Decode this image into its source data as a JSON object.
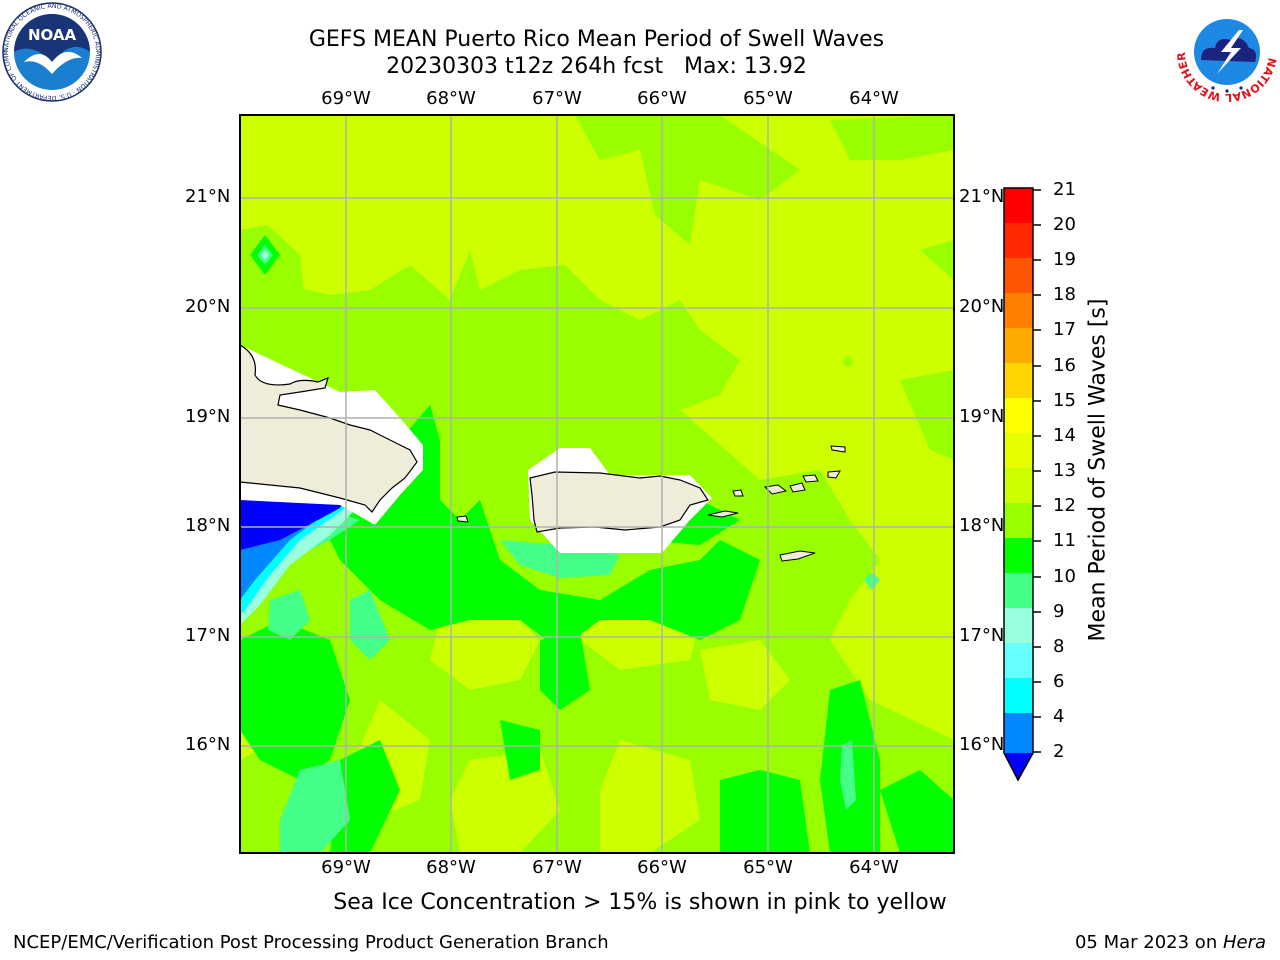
{
  "title": {
    "line1": "GEFS MEAN Puerto Rico Mean Period of Swell Waves",
    "line2": "20230303 t12z 264h fcst   Max: 13.92"
  },
  "logos": {
    "noaa_text": "NOAA",
    "noaa_ring_text": "NATIONAL OCEANIC AND ATMOSPHERIC ADMINISTRATION · U.S. DEPARTMENT OF COMMERCE",
    "nws_ring_text": "NATIONAL WEATHER SERVICE"
  },
  "map": {
    "lon_labels": [
      "69°W",
      "68°W",
      "67°W",
      "66°W",
      "65°W",
      "64°W"
    ],
    "lat_labels": [
      "21°N",
      "20°N",
      "19°N",
      "18°N",
      "17°N",
      "16°N"
    ],
    "land_color": "#efedda",
    "ocean_dominant_color": "#ccff00",
    "gridline_color": "#b0b0b0"
  },
  "colorbar": {
    "title": "Mean Period of Swell Waves [s]",
    "tick_labels": [
      "21",
      "20",
      "19",
      "18",
      "17",
      "16",
      "15",
      "14",
      "13",
      "12",
      "11",
      "10",
      "9",
      "8",
      "6",
      "4",
      "2"
    ],
    "colors_top_to_bottom": [
      "#ff0000",
      "#ff2a00",
      "#ff5500",
      "#ff8000",
      "#ffaa00",
      "#ffd400",
      "#ffff00",
      "#e6ff00",
      "#ccff00",
      "#99ff00",
      "#00ff00",
      "#44ff88",
      "#99ffdd",
      "#66ffff",
      "#00ffff",
      "#0088ff",
      "#0000ff"
    ]
  },
  "footnote": "Sea Ice Concentration > 15% is shown in pink to yellow",
  "footer": {
    "left": "NCEP/EMC/Verification Post Processing Product Generation Branch",
    "date": "05 Mar 2023 on ",
    "host": "Hera"
  }
}
